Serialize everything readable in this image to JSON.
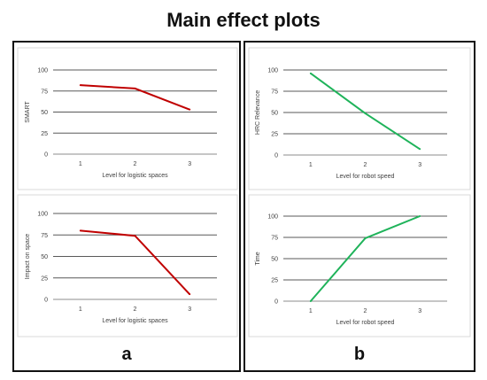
{
  "title": "Main effect plots",
  "panels": [
    {
      "label": "a"
    },
    {
      "label": "b"
    }
  ],
  "chart_data": [
    {
      "type": "line",
      "x": [
        1,
        2,
        3
      ],
      "y": [
        82,
        78,
        53
      ],
      "xlabel": "Level for logistic spaces",
      "ylabel": "SMART",
      "ylim": [
        0,
        100
      ],
      "yticks": [
        0,
        25,
        50,
        75,
        100
      ],
      "grid": true,
      "color": "#c00000"
    },
    {
      "type": "line",
      "x": [
        1,
        2,
        3
      ],
      "y": [
        80,
        74,
        6
      ],
      "xlabel": "Level for logistic spaces",
      "ylabel": "Impact on space",
      "ylim": [
        0,
        100
      ],
      "yticks": [
        0,
        25,
        50,
        75,
        100
      ],
      "grid": true,
      "color": "#c00000"
    },
    {
      "type": "line",
      "x": [
        1,
        2,
        3
      ],
      "y": [
        96,
        49,
        7
      ],
      "xlabel": "Level for robot speed",
      "ylabel": "HRC Relevance",
      "ylim": [
        0,
        100
      ],
      "yticks": [
        0,
        25,
        50,
        75,
        100
      ],
      "grid": true,
      "color": "#1fb35a"
    },
    {
      "type": "line",
      "x": [
        1,
        2,
        3
      ],
      "y": [
        0,
        74,
        100
      ],
      "xlabel": "Level for robot speed",
      "ylabel": "Time",
      "ylim": [
        0,
        100
      ],
      "yticks": [
        0,
        25,
        50,
        75,
        100
      ],
      "grid": true,
      "color": "#1fb35a"
    }
  ]
}
